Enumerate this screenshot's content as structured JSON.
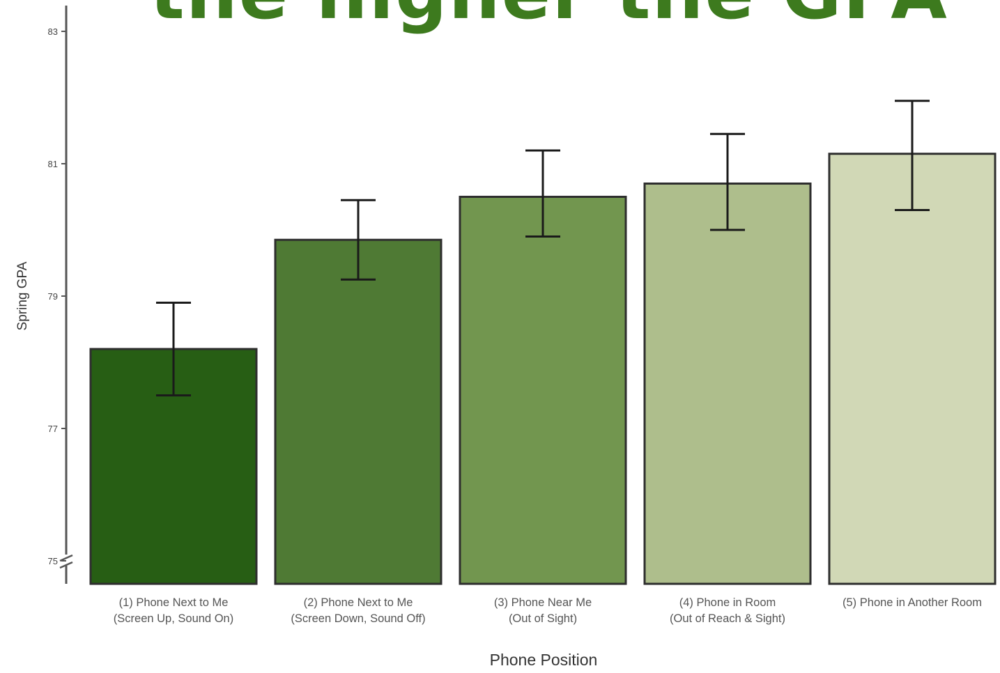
{
  "headline": "the higher the GPA",
  "chart_data": {
    "type": "bar",
    "title": "",
    "xlabel": "Phone Position",
    "ylabel": "Spring GPA",
    "ylim": [
      75,
      83
    ],
    "yticks": [
      "75",
      "77",
      "79",
      "81",
      "83"
    ],
    "axis_break": true,
    "categories": [
      [
        "(1) Phone Next to Me",
        "(Screen Up, Sound On)"
      ],
      [
        "(2) Phone Next to Me",
        "(Screen Down, Sound Off)"
      ],
      [
        "(3) Phone Near Me",
        "(Out of Sight)"
      ],
      [
        "(4) Phone in Room",
        "(Out of Reach & Sight)"
      ],
      [
        "(5) Phone in Another Room"
      ]
    ],
    "values": [
      78.2,
      79.85,
      80.5,
      80.7,
      81.15
    ],
    "error_low": [
      77.5,
      79.25,
      79.9,
      80.0,
      80.3
    ],
    "error_high": [
      78.9,
      80.45,
      81.2,
      81.45,
      81.95
    ],
    "colors": [
      "#275e14",
      "#4f7a34",
      "#72964f",
      "#aebe8c",
      "#d1d8b6"
    ],
    "grid": false
  }
}
